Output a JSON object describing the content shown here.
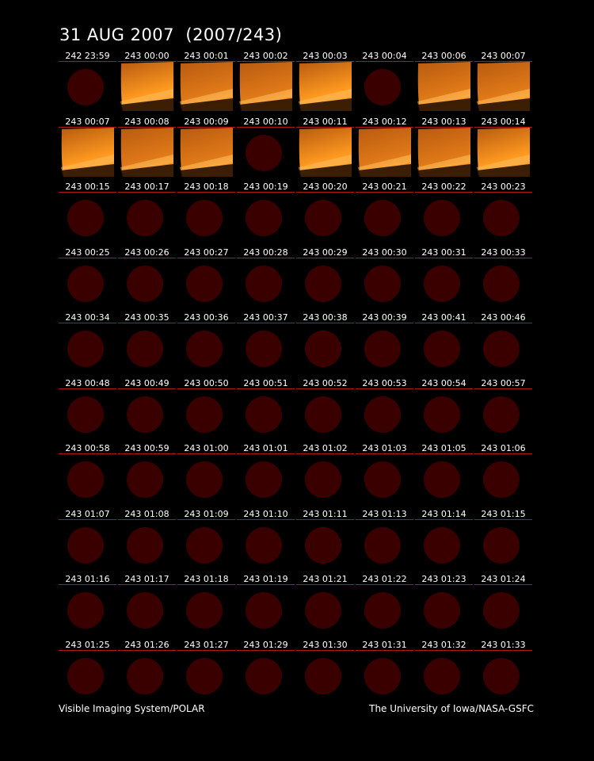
{
  "title": "31 AUG 2007  (2007/243)",
  "footer_left": "Visible Imaging System/POLAR",
  "footer_right": "The University of Iowa/NASA-GSFC",
  "colors": {
    "background": "#000000",
    "disk": "#3a0000",
    "underline": "#b01818",
    "image_dark": "#b85a10",
    "image_bright": "#ff9a20"
  },
  "rows": [
    [
      {
        "time": "242 23:59",
        "kind": "disk"
      },
      {
        "time": "243 00:00",
        "kind": "image"
      },
      {
        "time": "243 00:01",
        "kind": "image"
      },
      {
        "time": "243 00:02",
        "kind": "image"
      },
      {
        "time": "243 00:03",
        "kind": "image"
      },
      {
        "time": "243 00:04",
        "kind": "disk"
      },
      {
        "time": "243 00:06",
        "kind": "image"
      },
      {
        "time": "243 00:07",
        "kind": "image"
      }
    ],
    [
      {
        "time": "243 00:07",
        "kind": "image"
      },
      {
        "time": "243 00:08",
        "kind": "image"
      },
      {
        "time": "243 00:09",
        "kind": "image"
      },
      {
        "time": "243 00:10",
        "kind": "disk"
      },
      {
        "time": "243 00:11",
        "kind": "image"
      },
      {
        "time": "243 00:12",
        "kind": "image"
      },
      {
        "time": "243 00:13",
        "kind": "image"
      },
      {
        "time": "243 00:14",
        "kind": "image"
      }
    ],
    [
      {
        "time": "243 00:15",
        "kind": "disk"
      },
      {
        "time": "243 00:17",
        "kind": "disk"
      },
      {
        "time": "243 00:18",
        "kind": "disk"
      },
      {
        "time": "243 00:19",
        "kind": "disk"
      },
      {
        "time": "243 00:20",
        "kind": "disk"
      },
      {
        "time": "243 00:21",
        "kind": "disk"
      },
      {
        "time": "243 00:22",
        "kind": "disk"
      },
      {
        "time": "243 00:23",
        "kind": "disk"
      }
    ],
    [
      {
        "time": "243 00:25",
        "kind": "disk"
      },
      {
        "time": "243 00:26",
        "kind": "disk"
      },
      {
        "time": "243 00:27",
        "kind": "disk"
      },
      {
        "time": "243 00:28",
        "kind": "disk"
      },
      {
        "time": "243 00:29",
        "kind": "disk"
      },
      {
        "time": "243 00:30",
        "kind": "disk"
      },
      {
        "time": "243 00:31",
        "kind": "disk"
      },
      {
        "time": "243 00:33",
        "kind": "disk"
      }
    ],
    [
      {
        "time": "243 00:34",
        "kind": "disk"
      },
      {
        "time": "243 00:35",
        "kind": "disk"
      },
      {
        "time": "243 00:36",
        "kind": "disk"
      },
      {
        "time": "243 00:37",
        "kind": "disk"
      },
      {
        "time": "243 00:38",
        "kind": "disk"
      },
      {
        "time": "243 00:39",
        "kind": "disk"
      },
      {
        "time": "243 00:41",
        "kind": "disk"
      },
      {
        "time": "243 00:46",
        "kind": "disk"
      }
    ],
    [
      {
        "time": "243 00:48",
        "kind": "disk"
      },
      {
        "time": "243 00:49",
        "kind": "disk"
      },
      {
        "time": "243 00:50",
        "kind": "disk"
      },
      {
        "time": "243 00:51",
        "kind": "disk"
      },
      {
        "time": "243 00:52",
        "kind": "disk"
      },
      {
        "time": "243 00:53",
        "kind": "disk"
      },
      {
        "time": "243 00:54",
        "kind": "disk"
      },
      {
        "time": "243 00:57",
        "kind": "disk"
      }
    ],
    [
      {
        "time": "243 00:58",
        "kind": "disk"
      },
      {
        "time": "243 00:59",
        "kind": "disk"
      },
      {
        "time": "243 01:00",
        "kind": "disk"
      },
      {
        "time": "243 01:01",
        "kind": "disk"
      },
      {
        "time": "243 01:02",
        "kind": "disk"
      },
      {
        "time": "243 01:03",
        "kind": "disk"
      },
      {
        "time": "243 01:05",
        "kind": "disk"
      },
      {
        "time": "243 01:06",
        "kind": "disk"
      }
    ],
    [
      {
        "time": "243 01:07",
        "kind": "disk"
      },
      {
        "time": "243 01:08",
        "kind": "disk"
      },
      {
        "time": "243 01:09",
        "kind": "disk"
      },
      {
        "time": "243 01:10",
        "kind": "disk"
      },
      {
        "time": "243 01:11",
        "kind": "disk"
      },
      {
        "time": "243 01:13",
        "kind": "disk"
      },
      {
        "time": "243 01:14",
        "kind": "disk"
      },
      {
        "time": "243 01:15",
        "kind": "disk"
      }
    ],
    [
      {
        "time": "243 01:16",
        "kind": "disk"
      },
      {
        "time": "243 01:17",
        "kind": "disk"
      },
      {
        "time": "243 01:18",
        "kind": "disk"
      },
      {
        "time": "243 01:19",
        "kind": "disk"
      },
      {
        "time": "243 01:21",
        "kind": "disk"
      },
      {
        "time": "243 01:22",
        "kind": "disk"
      },
      {
        "time": "243 01:23",
        "kind": "disk"
      },
      {
        "time": "243 01:24",
        "kind": "disk"
      }
    ],
    [
      {
        "time": "243 01:25",
        "kind": "disk"
      },
      {
        "time": "243 01:26",
        "kind": "disk"
      },
      {
        "time": "243 01:27",
        "kind": "disk"
      },
      {
        "time": "243 01:29",
        "kind": "disk"
      },
      {
        "time": "243 01:30",
        "kind": "disk"
      },
      {
        "time": "243 01:31",
        "kind": "disk"
      },
      {
        "time": "243 01:32",
        "kind": "disk"
      },
      {
        "time": "243 01:33",
        "kind": "disk"
      }
    ]
  ]
}
